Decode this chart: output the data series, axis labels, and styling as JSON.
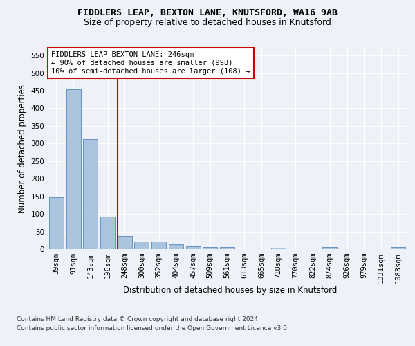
{
  "title_line1": "FIDDLERS LEAP, BEXTON LANE, KNUTSFORD, WA16 9AB",
  "title_line2": "Size of property relative to detached houses in Knutsford",
  "xlabel": "Distribution of detached houses by size in Knutsford",
  "ylabel": "Number of detached properties",
  "categories": [
    "39sqm",
    "91sqm",
    "143sqm",
    "196sqm",
    "248sqm",
    "300sqm",
    "352sqm",
    "404sqm",
    "457sqm",
    "509sqm",
    "561sqm",
    "613sqm",
    "665sqm",
    "718sqm",
    "770sqm",
    "822sqm",
    "874sqm",
    "926sqm",
    "979sqm",
    "1031sqm",
    "1083sqm"
  ],
  "values": [
    148,
    455,
    312,
    92,
    38,
    22,
    22,
    13,
    8,
    5,
    5,
    0,
    0,
    4,
    0,
    0,
    5,
    0,
    0,
    0,
    5
  ],
  "bar_color": "#aac4e0",
  "bar_edge_color": "#5588bb",
  "vline_color": "#cc0000",
  "annotation_text": "FIDDLERS LEAP BEXTON LANE: 246sqm\n← 90% of detached houses are smaller (998)\n10% of semi-detached houses are larger (108) →",
  "annotation_box_color": "white",
  "annotation_box_edge_color": "#cc0000",
  "ylim": [
    0,
    570
  ],
  "yticks": [
    0,
    50,
    100,
    150,
    200,
    250,
    300,
    350,
    400,
    450,
    500,
    550
  ],
  "footer_line1": "Contains HM Land Registry data © Crown copyright and database right 2024.",
  "footer_line2": "Contains public sector information licensed under the Open Government Licence v3.0.",
  "background_color": "#eef2f8",
  "plot_bg_color": "#eef2f8",
  "grid_color": "#ffffff",
  "title_fontsize": 9.5,
  "subtitle_fontsize": 9,
  "axis_label_fontsize": 8.5,
  "tick_fontsize": 7.5,
  "annotation_fontsize": 7.5,
  "footer_fontsize": 6.5
}
